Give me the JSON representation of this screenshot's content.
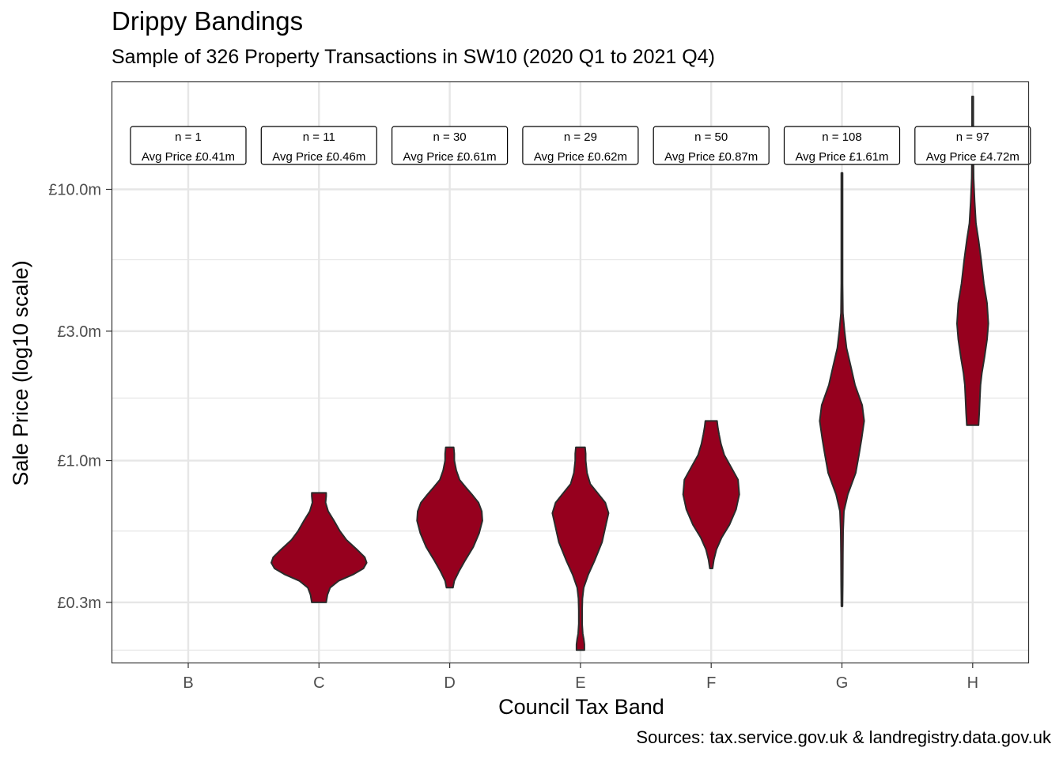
{
  "title": "Drippy Bandings",
  "subtitle": "Sample of 326 Property Transactions in SW10 (2020 Q1 to 2021 Q4)",
  "caption": "Sources: tax.service.gov.uk & landregistry.data.gov.uk",
  "colors": {
    "violin_fill": "#96001E",
    "violin_stroke": "#2b2b2b",
    "grid": "#e6e6e6",
    "panel_border": "#333333"
  },
  "chart_data": {
    "type": "violin",
    "xlabel": "Council Tax Band",
    "ylabel": "Sale Price (log10 scale)",
    "y_scale": "log10",
    "ylim": [
      0.18,
      25
    ],
    "grid": true,
    "categories": [
      "B",
      "C",
      "D",
      "E",
      "F",
      "G",
      "H"
    ],
    "y_ticks": [
      {
        "value": 0.3,
        "label": "£0.3m"
      },
      {
        "value": 1.0,
        "label": "£1.0m"
      },
      {
        "value": 3.0,
        "label": "£3.0m"
      },
      {
        "value": 10.0,
        "label": "£10.0m"
      }
    ],
    "y_minor_ticks": [
      0.2,
      0.55,
      1.7,
      5.5
    ],
    "annotations": [
      {
        "band": "B",
        "n_label": "n = 1",
        "avg_label": "Avg Price £0.41m"
      },
      {
        "band": "C",
        "n_label": "n = 11",
        "avg_label": "Avg Price £0.46m"
      },
      {
        "band": "D",
        "n_label": "n = 30",
        "avg_label": "Avg Price £0.61m"
      },
      {
        "band": "E",
        "n_label": "n = 29",
        "avg_label": "Avg Price £0.62m"
      },
      {
        "band": "F",
        "n_label": "n = 50",
        "avg_label": "Avg Price £0.87m"
      },
      {
        "band": "G",
        "n_label": "n = 108",
        "avg_label": "Avg Price £1.61m"
      },
      {
        "band": "H",
        "n_label": "n = 97",
        "avg_label": "Avg Price £4.72m"
      }
    ],
    "violins": [
      {
        "band": "C",
        "min": 0.3,
        "max": 0.76,
        "profile": [
          [
            0.3,
            0.11
          ],
          [
            0.32,
            0.13
          ],
          [
            0.34,
            0.17
          ],
          [
            0.36,
            0.3
          ],
          [
            0.38,
            0.52
          ],
          [
            0.4,
            0.68
          ],
          [
            0.42,
            0.73
          ],
          [
            0.44,
            0.7
          ],
          [
            0.47,
            0.58
          ],
          [
            0.51,
            0.42
          ],
          [
            0.55,
            0.32
          ],
          [
            0.6,
            0.23
          ],
          [
            0.65,
            0.14
          ],
          [
            0.7,
            0.1
          ],
          [
            0.74,
            0.11
          ],
          [
            0.76,
            0.11
          ]
        ]
      },
      {
        "band": "D",
        "min": 0.34,
        "max": 1.12,
        "profile": [
          [
            0.34,
            0.05
          ],
          [
            0.36,
            0.07
          ],
          [
            0.39,
            0.14
          ],
          [
            0.43,
            0.24
          ],
          [
            0.48,
            0.36
          ],
          [
            0.54,
            0.45
          ],
          [
            0.6,
            0.5
          ],
          [
            0.65,
            0.49
          ],
          [
            0.7,
            0.44
          ],
          [
            0.75,
            0.34
          ],
          [
            0.8,
            0.24
          ],
          [
            0.85,
            0.15
          ],
          [
            0.92,
            0.1
          ],
          [
            1.0,
            0.07
          ],
          [
            1.06,
            0.07
          ],
          [
            1.12,
            0.06
          ]
        ]
      },
      {
        "band": "E",
        "min": 0.2,
        "max": 1.12,
        "profile": [
          [
            0.2,
            0.06
          ],
          [
            0.21,
            0.06
          ],
          [
            0.22,
            0.05
          ],
          [
            0.23,
            0.035
          ],
          [
            0.25,
            0.025
          ],
          [
            0.28,
            0.025
          ],
          [
            0.31,
            0.03
          ],
          [
            0.34,
            0.05
          ],
          [
            0.38,
            0.12
          ],
          [
            0.43,
            0.22
          ],
          [
            0.5,
            0.33
          ],
          [
            0.58,
            0.39
          ],
          [
            0.64,
            0.43
          ],
          [
            0.7,
            0.38
          ],
          [
            0.76,
            0.26
          ],
          [
            0.82,
            0.15
          ],
          [
            0.9,
            0.1
          ],
          [
            1.0,
            0.08
          ],
          [
            1.06,
            0.08
          ],
          [
            1.12,
            0.07
          ]
        ]
      },
      {
        "band": "F",
        "min": 0.4,
        "max": 1.4,
        "profile": [
          [
            0.4,
            0.02
          ],
          [
            0.43,
            0.04
          ],
          [
            0.47,
            0.08
          ],
          [
            0.52,
            0.16
          ],
          [
            0.58,
            0.28
          ],
          [
            0.66,
            0.38
          ],
          [
            0.75,
            0.43
          ],
          [
            0.85,
            0.41
          ],
          [
            0.95,
            0.3
          ],
          [
            1.05,
            0.2
          ],
          [
            1.15,
            0.15
          ],
          [
            1.25,
            0.12
          ],
          [
            1.33,
            0.1
          ],
          [
            1.4,
            0.09
          ]
        ]
      },
      {
        "band": "G",
        "min": 0.29,
        "max": 11.5,
        "profile": [
          [
            0.29,
            0.008
          ],
          [
            0.35,
            0.012
          ],
          [
            0.45,
            0.015
          ],
          [
            0.55,
            0.018
          ],
          [
            0.65,
            0.03
          ],
          [
            0.75,
            0.09
          ],
          [
            0.9,
            0.21
          ],
          [
            1.05,
            0.26
          ],
          [
            1.2,
            0.3
          ],
          [
            1.4,
            0.34
          ],
          [
            1.6,
            0.31
          ],
          [
            1.9,
            0.2
          ],
          [
            2.2,
            0.14
          ],
          [
            2.6,
            0.07
          ],
          [
            3.0,
            0.04
          ],
          [
            3.5,
            0.015
          ],
          [
            4.5,
            0.01
          ],
          [
            6.0,
            0.01
          ],
          [
            8.0,
            0.01
          ],
          [
            10.0,
            0.01
          ],
          [
            11.5,
            0.01
          ]
        ]
      },
      {
        "band": "H",
        "min": 1.35,
        "max": 22.0,
        "profile": [
          [
            1.35,
            0.09
          ],
          [
            1.5,
            0.1
          ],
          [
            1.7,
            0.11
          ],
          [
            1.9,
            0.12
          ],
          [
            2.1,
            0.14
          ],
          [
            2.4,
            0.18
          ],
          [
            2.8,
            0.22
          ],
          [
            3.2,
            0.24
          ],
          [
            3.8,
            0.22
          ],
          [
            4.5,
            0.17
          ],
          [
            5.5,
            0.13
          ],
          [
            6.5,
            0.09
          ],
          [
            7.5,
            0.05
          ],
          [
            9.0,
            0.03
          ],
          [
            11.0,
            0.015
          ],
          [
            14.0,
            0.01
          ],
          [
            18.0,
            0.01
          ],
          [
            22.0,
            0.01
          ]
        ]
      }
    ]
  }
}
